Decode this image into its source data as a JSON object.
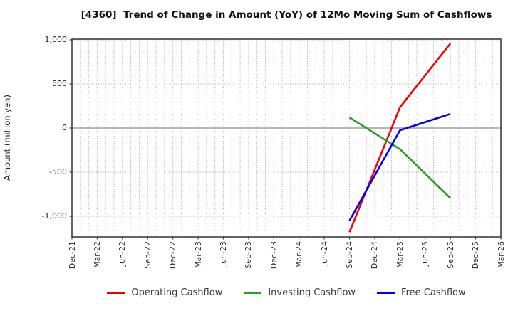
{
  "chart_data": {
    "type": "line",
    "title": "[4360]  Trend of Change in Amount (YoY) of 12Mo Moving Sum of Cashflows",
    "ylabel": "Amount (million yen)",
    "xlabel": "",
    "x_tick_labels": [
      "Dec-21",
      "Mar-22",
      "Jun-22",
      "Sep-22",
      "Dec-22",
      "Mar-23",
      "Jun-23",
      "Sep-23",
      "Dec-23",
      "Mar-24",
      "Jun-24",
      "Sep-24",
      "Dec-24",
      "Mar-25",
      "Jun-25",
      "Sep-25",
      "Dec-25",
      "Mar-26"
    ],
    "y_ticks": [
      {
        "label": "1,000",
        "value": 1000
      },
      {
        "label": "500",
        "value": 500
      },
      {
        "label": "0",
        "value": 0
      },
      {
        "label": "-500",
        "value": -500
      },
      {
        "label": "-1,000",
        "value": -1000
      }
    ],
    "ylim": [
      -1234,
      1008
    ],
    "grid": true,
    "minor_x_divisions_per_interval": 3,
    "legend_position": "bottom-center",
    "series": [
      {
        "name": "Operating Cashflow",
        "color": "#f20000",
        "points": [
          {
            "x": "Sep-24",
            "y": -1180
          },
          {
            "x": "Mar-25",
            "y": 235
          },
          {
            "x": "Sep-25",
            "y": 960
          }
        ]
      },
      {
        "name": "Investing Cashflow",
        "color": "#2b9b2b",
        "points": [
          {
            "x": "Sep-24",
            "y": 120
          },
          {
            "x": "Mar-25",
            "y": -240
          },
          {
            "x": "Sep-25",
            "y": -795
          }
        ]
      },
      {
        "name": "Free Cashflow",
        "color": "#0000f0",
        "points": [
          {
            "x": "Sep-24",
            "y": -1050
          },
          {
            "x": "Mar-25",
            "y": -25
          },
          {
            "x": "Sep-25",
            "y": 160
          }
        ]
      }
    ],
    "colors": {
      "axis": "#3f3f3f",
      "grid": "#aaaaaa",
      "zero_line": "#8c8c8c",
      "background": "#ffffff"
    }
  }
}
